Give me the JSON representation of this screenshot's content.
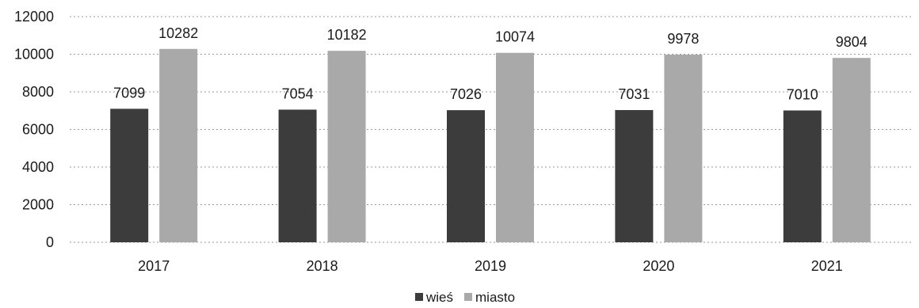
{
  "chart_data": {
    "type": "bar",
    "title": "",
    "xlabel": "",
    "ylabel": "",
    "categories": [
      "2017",
      "2018",
      "2019",
      "2020",
      "2021"
    ],
    "series": [
      {
        "name": "wieś",
        "color": "#3c3c3c",
        "values": [
          7099,
          7054,
          7026,
          7031,
          7010
        ]
      },
      {
        "name": "miasto",
        "color": "#a9a9a9",
        "values": [
          10282,
          10182,
          10074,
          9978,
          9804
        ]
      }
    ],
    "ylim": [
      0,
      12000
    ],
    "yticks": [
      "0",
      "2000",
      "4000",
      "6000",
      "8000",
      "10000",
      "12000"
    ],
    "grid": true,
    "legend_position": "bottom-center",
    "data_labels": true
  }
}
